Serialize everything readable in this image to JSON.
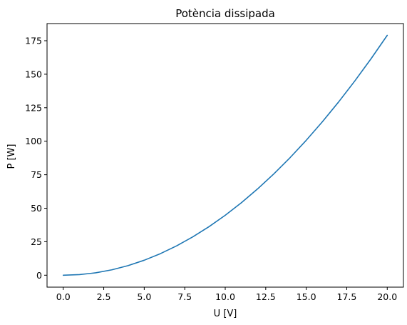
{
  "chart_data": {
    "type": "line",
    "title": "Potència dissipada",
    "xlabel": "U [V]",
    "ylabel": "P [W]",
    "xlim": [
      -1.0,
      21.0
    ],
    "ylim": [
      -8.9,
      187.8
    ],
    "xticks": [
      0.0,
      2.5,
      5.0,
      7.5,
      10.0,
      12.5,
      15.0,
      17.5,
      20.0
    ],
    "xtick_labels": [
      "0.0",
      "2.5",
      "5.0",
      "7.5",
      "10.0",
      "12.5",
      "15.0",
      "17.5",
      "20.0"
    ],
    "yticks": [
      0,
      25,
      50,
      75,
      100,
      125,
      150,
      175
    ],
    "ytick_labels": [
      "0",
      "25",
      "50",
      "75",
      "100",
      "125",
      "150",
      "175"
    ],
    "grid": false,
    "series": [
      {
        "color": "#1f77b4",
        "x": [
          0,
          1,
          2,
          3,
          4,
          5,
          6,
          7,
          8,
          9,
          10,
          11,
          12,
          13,
          14,
          15,
          16,
          17,
          18,
          19,
          20
        ],
        "y": [
          0.0,
          0.45,
          1.79,
          4.03,
          7.16,
          11.19,
          16.11,
          21.93,
          28.64,
          36.25,
          44.75,
          54.15,
          64.44,
          75.63,
          87.71,
          100.69,
          114.56,
          129.33,
          144.99,
          161.55,
          179.0
        ]
      }
    ]
  }
}
